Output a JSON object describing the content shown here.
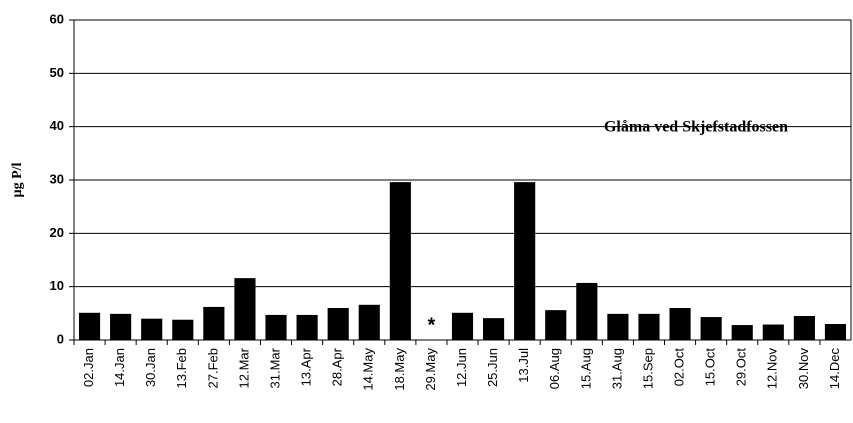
{
  "chart_data": {
    "type": "bar",
    "annotation": "Glåma ved Skjefstadfossen",
    "y_label": "µg P/l",
    "missing_marker": "*",
    "categories": [
      "02.Jan",
      "14.Jan",
      "30.Jan",
      "13.Feb",
      "27.Feb",
      "12.Mar",
      "31.Mar",
      "13.Apr",
      "28.Apr",
      "14.May",
      "18.May",
      "29.May",
      "12.Jun",
      "25.Jun",
      "13.Jul",
      "06.Aug",
      "15.Aug",
      "31.Aug",
      "15.Sep",
      "02.Oct",
      "15.Oct",
      "29.Oct",
      "12.Nov",
      "30.Nov",
      "14.Dec"
    ],
    "values": [
      5.1,
      4.9,
      4.0,
      3.8,
      6.2,
      11.6,
      4.7,
      4.7,
      6.0,
      6.6,
      29.6,
      null,
      5.1,
      4.1,
      29.6,
      5.6,
      10.7,
      4.9,
      4.9,
      6.0,
      4.3,
      2.8,
      2.9,
      4.5,
      3.0
    ],
    "color": "#000000",
    "ylim": [
      0,
      60
    ],
    "yticks": [
      0,
      10,
      20,
      30,
      40,
      50,
      60
    ],
    "grid": true
  }
}
